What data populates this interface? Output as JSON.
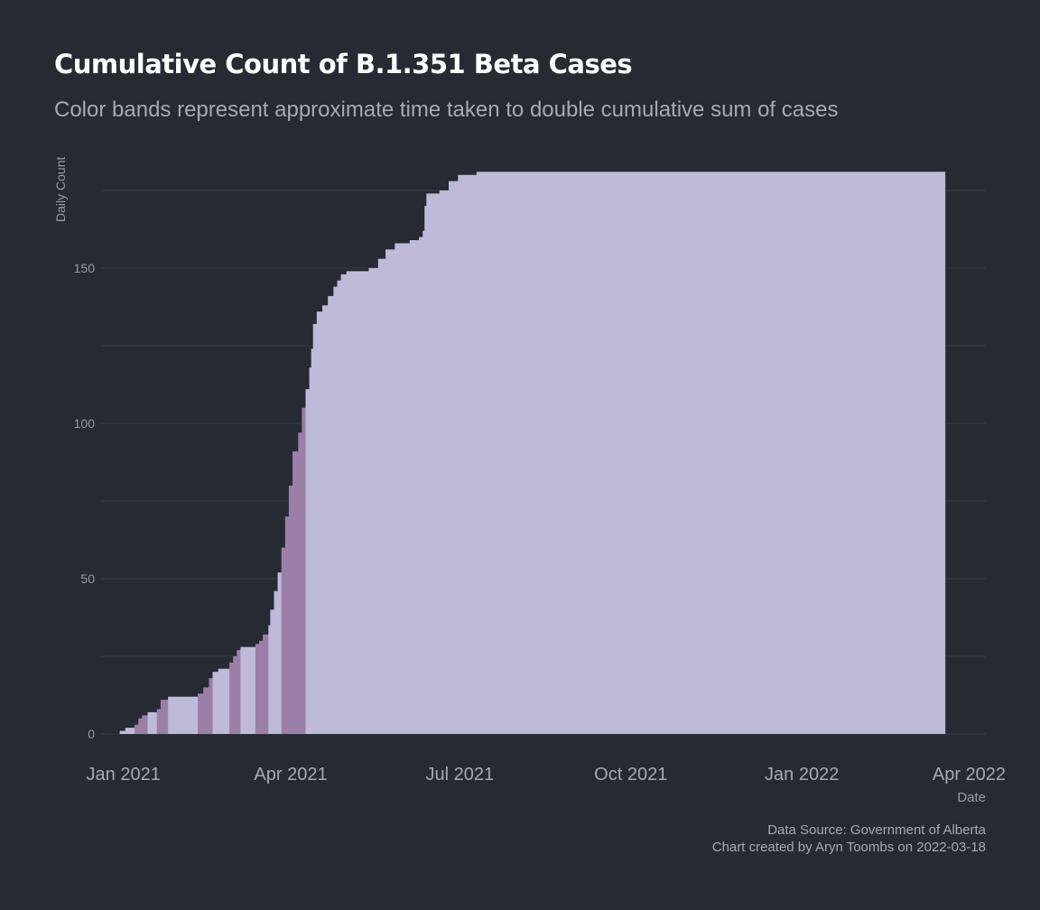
{
  "chart_data": {
    "type": "bar",
    "title": "Cumulative Count of B.1.351 Beta Cases",
    "subtitle": "Color bands represent approximate time taken to double cumulative sum of cases",
    "xlabel": "Date",
    "ylabel": "Daily Count",
    "x_ticks": [
      {
        "date": "2021-01-01",
        "label": "Jan 2021"
      },
      {
        "date": "2021-04-01",
        "label": "Apr 2021"
      },
      {
        "date": "2021-07-01",
        "label": "Jul 2021"
      },
      {
        "date": "2021-10-01",
        "label": "Oct 2021"
      },
      {
        "date": "2022-01-01",
        "label": "Jan 2022"
      },
      {
        "date": "2022-04-01",
        "label": "Apr 2022"
      }
    ],
    "y_ticks": [
      0,
      50,
      100,
      150
    ],
    "xlim": [
      "2020-12-20",
      "2022-04-10"
    ],
    "ylim": [
      0,
      184
    ],
    "grid": true,
    "colors": {
      "band_dark": "#9c7fa8",
      "band_light": "#bfbad9",
      "background": "#252a33"
    },
    "points": [
      {
        "date": "2020-12-30",
        "value": 1,
        "band": "light"
      },
      {
        "date": "2021-01-02",
        "value": 2,
        "band": "light"
      },
      {
        "date": "2021-01-05",
        "value": 2,
        "band": "light"
      },
      {
        "date": "2021-01-07",
        "value": 3,
        "band": "dark"
      },
      {
        "date": "2021-01-09",
        "value": 5,
        "band": "dark"
      },
      {
        "date": "2021-01-11",
        "value": 6,
        "band": "dark"
      },
      {
        "date": "2021-01-14",
        "value": 7,
        "band": "light"
      },
      {
        "date": "2021-01-19",
        "value": 8,
        "band": "dark"
      },
      {
        "date": "2021-01-21",
        "value": 11,
        "band": "dark"
      },
      {
        "date": "2021-01-25",
        "value": 12,
        "band": "light"
      },
      {
        "date": "2021-02-10",
        "value": 13,
        "band": "dark"
      },
      {
        "date": "2021-02-13",
        "value": 15,
        "band": "dark"
      },
      {
        "date": "2021-02-16",
        "value": 18,
        "band": "dark"
      },
      {
        "date": "2021-02-18",
        "value": 20,
        "band": "light"
      },
      {
        "date": "2021-02-21",
        "value": 21,
        "band": "light"
      },
      {
        "date": "2021-02-27",
        "value": 23,
        "band": "dark"
      },
      {
        "date": "2021-03-01",
        "value": 25,
        "band": "dark"
      },
      {
        "date": "2021-03-03",
        "value": 27,
        "band": "dark"
      },
      {
        "date": "2021-03-05",
        "value": 28,
        "band": "light"
      },
      {
        "date": "2021-03-13",
        "value": 29,
        "band": "dark"
      },
      {
        "date": "2021-03-15",
        "value": 30,
        "band": "dark"
      },
      {
        "date": "2021-03-17",
        "value": 32,
        "band": "dark"
      },
      {
        "date": "2021-03-20",
        "value": 35,
        "band": "light"
      },
      {
        "date": "2021-03-21",
        "value": 40,
        "band": "light"
      },
      {
        "date": "2021-03-23",
        "value": 46,
        "band": "light"
      },
      {
        "date": "2021-03-25",
        "value": 52,
        "band": "light"
      },
      {
        "date": "2021-03-27",
        "value": 60,
        "band": "dark"
      },
      {
        "date": "2021-03-29",
        "value": 70,
        "band": "dark"
      },
      {
        "date": "2021-03-31",
        "value": 80,
        "band": "dark"
      },
      {
        "date": "2021-04-02",
        "value": 91,
        "band": "dark"
      },
      {
        "date": "2021-04-05",
        "value": 97,
        "band": "dark"
      },
      {
        "date": "2021-04-07",
        "value": 105,
        "band": "dark"
      },
      {
        "date": "2021-04-09",
        "value": 111,
        "band": "light"
      },
      {
        "date": "2021-04-11",
        "value": 118,
        "band": "light"
      },
      {
        "date": "2021-04-12",
        "value": 124,
        "band": "light"
      },
      {
        "date": "2021-04-13",
        "value": 132,
        "band": "light"
      },
      {
        "date": "2021-04-15",
        "value": 136,
        "band": "light"
      },
      {
        "date": "2021-04-18",
        "value": 138,
        "band": "light"
      },
      {
        "date": "2021-04-21",
        "value": 141,
        "band": "light"
      },
      {
        "date": "2021-04-24",
        "value": 144,
        "band": "light"
      },
      {
        "date": "2021-04-26",
        "value": 146,
        "band": "light"
      },
      {
        "date": "2021-04-28",
        "value": 148,
        "band": "light"
      },
      {
        "date": "2021-05-01",
        "value": 149,
        "band": "light"
      },
      {
        "date": "2021-05-13",
        "value": 150,
        "band": "light"
      },
      {
        "date": "2021-05-18",
        "value": 153,
        "band": "light"
      },
      {
        "date": "2021-05-22",
        "value": 156,
        "band": "light"
      },
      {
        "date": "2021-05-27",
        "value": 158,
        "band": "light"
      },
      {
        "date": "2021-06-04",
        "value": 159,
        "band": "light"
      },
      {
        "date": "2021-06-09",
        "value": 160,
        "band": "light"
      },
      {
        "date": "2021-06-11",
        "value": 162,
        "band": "light"
      },
      {
        "date": "2021-06-12",
        "value": 170,
        "band": "light"
      },
      {
        "date": "2021-06-13",
        "value": 174,
        "band": "light"
      },
      {
        "date": "2021-06-20",
        "value": 175,
        "band": "light"
      },
      {
        "date": "2021-06-25",
        "value": 178,
        "band": "light"
      },
      {
        "date": "2021-06-30",
        "value": 180,
        "band": "light"
      },
      {
        "date": "2021-07-10",
        "value": 181,
        "band": "light"
      },
      {
        "date": "2022-03-18",
        "value": 181,
        "band": "light"
      }
    ]
  },
  "caption": {
    "line1": "Data Source: Government of Alberta",
    "line2": "Chart created by Aryn Toombs on 2022-03-18"
  }
}
